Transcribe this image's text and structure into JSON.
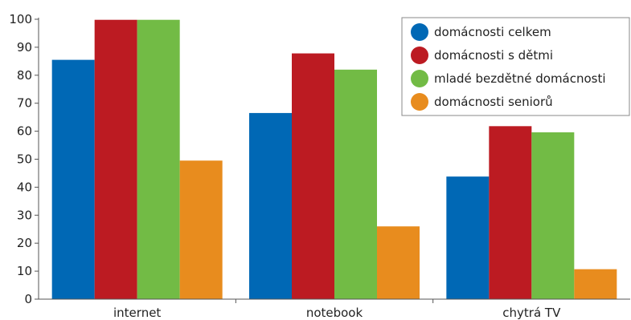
{
  "chart_data": {
    "type": "bar",
    "categories": [
      "internet",
      "notebook",
      "chytrá TV"
    ],
    "series": [
      {
        "name": "domácnosti celkem",
        "color": "#0068b5",
        "values": [
          85.5,
          66.5,
          43.8
        ]
      },
      {
        "name": "domácnosti s dětmi",
        "color": "#bc1b22",
        "values": [
          99.8,
          87.8,
          61.8
        ]
      },
      {
        "name": "mladé bezdětné domácnosti",
        "color": "#72bb45",
        "values": [
          99.8,
          82.0,
          59.6
        ]
      },
      {
        "name": "domácnosti seniorů",
        "color": "#e88c1e",
        "values": [
          49.5,
          26.0,
          10.7
        ]
      }
    ],
    "ylim": [
      0,
      100
    ],
    "yticks": [
      "0",
      "10",
      "20",
      "30",
      "40",
      "50",
      "60",
      "70",
      "80",
      "90",
      "100"
    ],
    "grid": false,
    "legend_position": "top-right"
  }
}
